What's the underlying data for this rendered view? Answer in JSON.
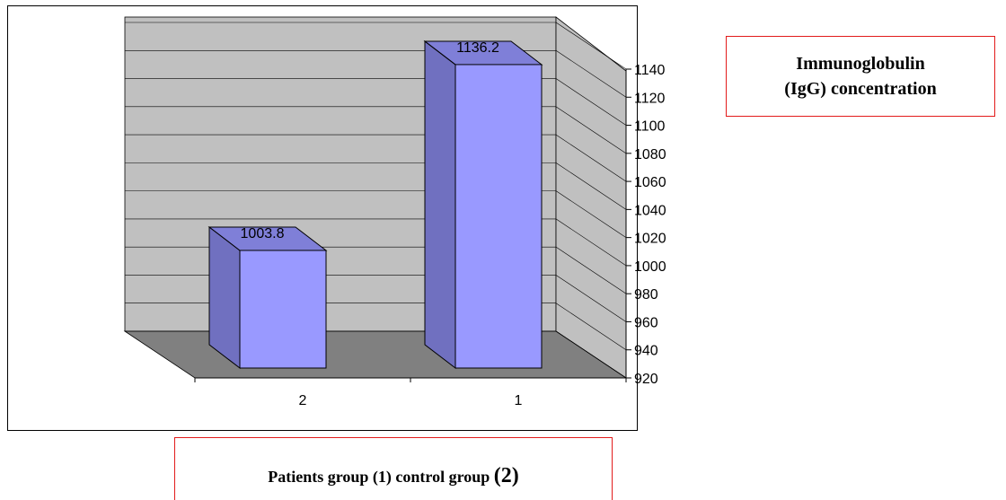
{
  "chart_data": {
    "type": "bar",
    "categories": [
      "2",
      "1"
    ],
    "values": [
      1003.8,
      1136.2
    ],
    "data_labels": [
      "1003.8",
      "1136.2"
    ],
    "ylim": [
      920,
      1140
    ],
    "yticks": [
      "920",
      "940",
      "960",
      "980",
      "1000",
      "1020",
      "1040",
      "1060",
      "1080",
      "1100",
      "1120",
      "1140"
    ],
    "title_lines": [
      "Immunoglobulin",
      "(IgG) concentration"
    ],
    "xlabel_parts": [
      "Patients group  (1)  control group ",
      "(2)"
    ],
    "grid": true,
    "style": "3d-column"
  },
  "colors": {
    "bar_front": "#9999ff",
    "bar_side": "#7070c0",
    "bar_top": "#7f7fd8",
    "wall": "#c0c0c0",
    "floor": "#808080",
    "box_border": "#e21b1b"
  }
}
